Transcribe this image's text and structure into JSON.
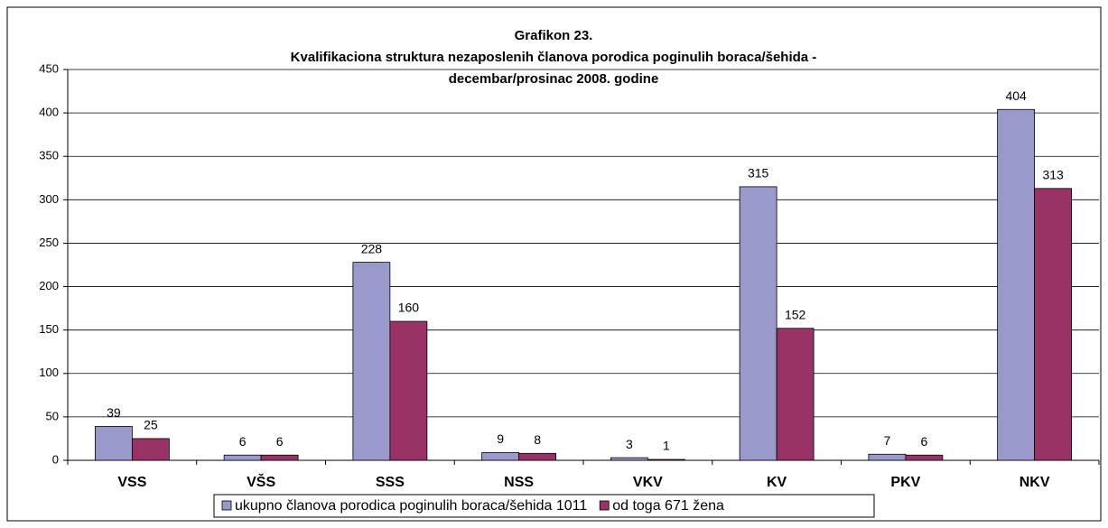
{
  "chart_data": {
    "type": "bar",
    "title": [
      "Grafikon 23.",
      "Kvalifikaciona struktura nezaposlenih članova porodica poginulih boraca/šehida  -",
      "decembar/prosinac 2008. godine"
    ],
    "categories": [
      "VSS",
      "VŠS",
      "SSS",
      "NSS",
      "VKV",
      "KV",
      "PKV",
      "NKV"
    ],
    "series": [
      {
        "name": "ukupno članova porodica poginulih boraca/šehida 1011",
        "color": "#9999cc",
        "values": [
          39,
          6,
          228,
          9,
          3,
          315,
          7,
          404
        ]
      },
      {
        "name": "od toga 671 žena",
        "color": "#993366",
        "values": [
          25,
          6,
          160,
          8,
          1,
          152,
          6,
          313
        ]
      }
    ],
    "ylim": [
      0,
      450
    ],
    "yticks": [
      0,
      50,
      100,
      150,
      200,
      250,
      300,
      350,
      400,
      450
    ],
    "grid": true,
    "legend": "bottom"
  }
}
